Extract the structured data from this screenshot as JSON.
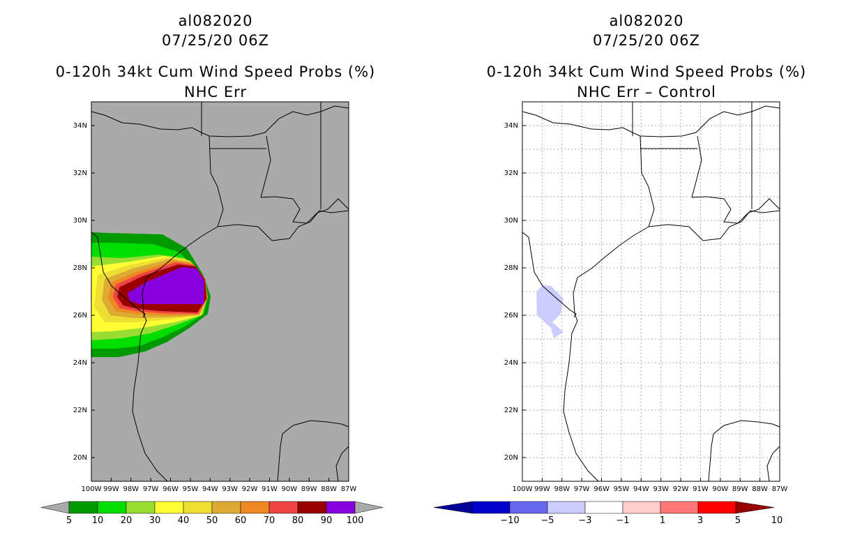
{
  "left_panel": {
    "storm_id": "al082020",
    "datetime": "07/25/20 06Z",
    "product": "0-120h 34kt Cum Wind Speed Probs (%)",
    "subtitle": "NHC Err",
    "land_color": "#aaaaaa",
    "colorbar": {
      "labels": [
        "5",
        "10",
        "20",
        "30",
        "40",
        "50",
        "60",
        "70",
        "80",
        "90",
        "100"
      ],
      "colors": [
        "#009900",
        "#00dd00",
        "#99dd33",
        "#ffff33",
        "#eedd33",
        "#ddaa33",
        "#ee8822",
        "#ee4444",
        "#990000",
        "#8800dd"
      ],
      "under_color": "#aaaaaa",
      "over_color": "#aaaaaa"
    }
  },
  "right_panel": {
    "storm_id": "al082020",
    "datetime": "07/25/20 06Z",
    "product": "0-120h 34kt Cum Wind Speed Probs (%)",
    "subtitle": "NHC Err – Control",
    "colorbar": {
      "labels": [
        "−10",
        "−5",
        "−3",
        "−1",
        "1",
        "3",
        "5",
        "10"
      ],
      "colors": [
        "#0000cc",
        "#6666ee",
        "#ccccff",
        "#ffffff",
        "#ffcccc",
        "#ff7777",
        "#ff0000"
      ],
      "under_color": "#000099",
      "over_color": "#990000"
    }
  },
  "axes": {
    "lat_labels": [
      "34N",
      "32N",
      "30N",
      "28N",
      "26N",
      "24N",
      "22N",
      "20N"
    ],
    "lon_labels": [
      "100W",
      "99W",
      "98W",
      "97W",
      "96W",
      "95W",
      "94W",
      "93W",
      "92W",
      "91W",
      "90W",
      "89W",
      "88W",
      "87W"
    ]
  }
}
